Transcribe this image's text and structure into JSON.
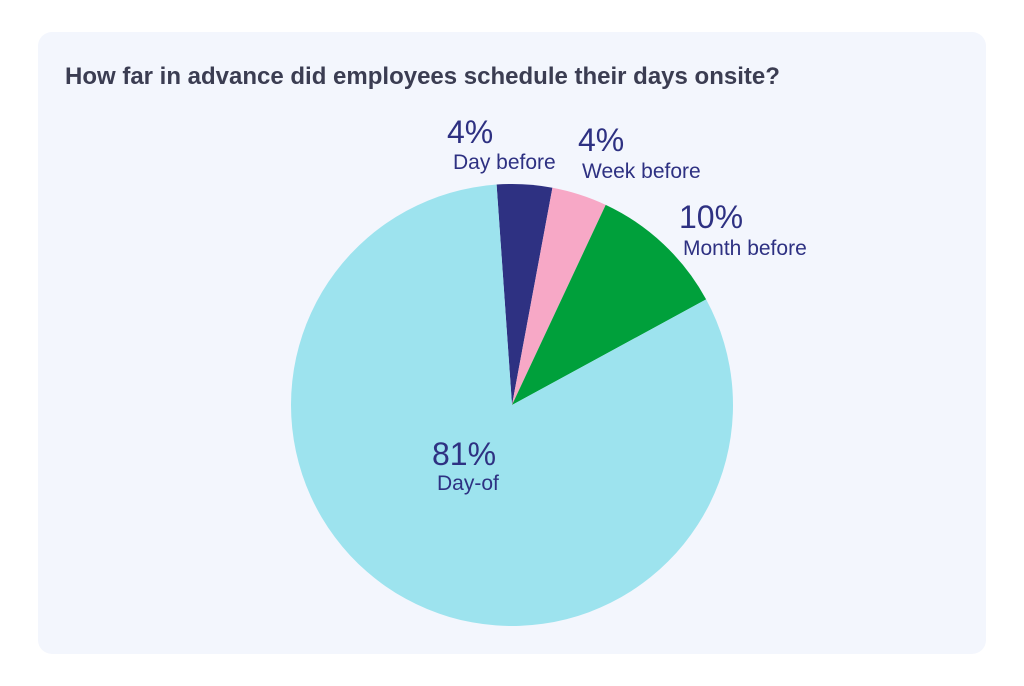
{
  "chart_data": {
    "type": "pie",
    "title": "How far in advance did employees schedule their days onsite?",
    "start_angle_deg": -4,
    "direction": "clockwise",
    "slices": [
      {
        "key": "day-before",
        "label": "Day before",
        "value": 4,
        "value_label": "4%",
        "color": "#2e3182"
      },
      {
        "key": "week-before",
        "label": "Week before",
        "value": 4,
        "value_label": "4%",
        "color": "#f7a8c6"
      },
      {
        "key": "month-before",
        "label": "Month before",
        "value": 10,
        "value_label": "10%",
        "color": "#00a03b"
      },
      {
        "key": "day-of",
        "label": "Day-of",
        "value": 81,
        "value_label": "81%",
        "color": "#9de3ee"
      }
    ],
    "label_color": "#2e3182"
  }
}
